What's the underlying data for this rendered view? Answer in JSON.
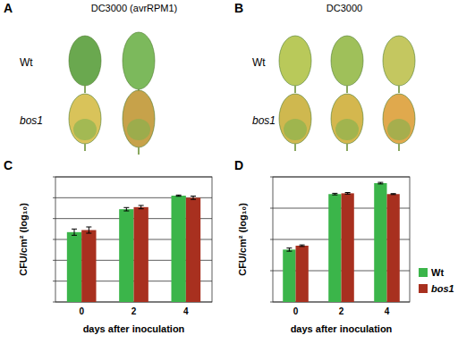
{
  "panel_labels": [
    "A",
    "B",
    "C",
    "D"
  ],
  "photos": [
    {
      "title": "DC3000 (avrRPM1)",
      "rows": [
        "Wt",
        "bos1"
      ]
    },
    {
      "title": "DC3000",
      "rows": [
        "Wt",
        "bos1"
      ]
    }
  ],
  "chart_data": [
    {
      "type": "bar",
      "categories": [
        "0",
        "2",
        "4"
      ],
      "x_label": "days after inoculation",
      "y_label": "CFU/cm² (log₁₀)",
      "series": [
        {
          "name": "Wt",
          "color": "#3bb54a",
          "values": [
            3.35,
            4.45,
            5.1
          ],
          "errors": [
            0.15,
            0.08,
            0.03
          ]
        },
        {
          "name": "bos1",
          "color": "#a8301f",
          "values": [
            3.45,
            4.55,
            5.0
          ],
          "errors": [
            0.15,
            0.08,
            0.08
          ]
        }
      ],
      "ylim": [
        0,
        6
      ],
      "yticks": [
        0,
        1,
        2,
        3,
        4,
        5,
        6
      ],
      "grid": true,
      "tick_labels": "x"
    },
    {
      "type": "bar",
      "categories": [
        "0",
        "2",
        "4"
      ],
      "x_label": "days after inoculation",
      "y_label": "CFU/cm² (log₁₀)",
      "series": [
        {
          "name": "Wt",
          "color": "#3bb54a",
          "values": [
            3.35,
            6.9,
            7.6
          ],
          "errors": [
            0.1,
            0.05,
            0.05
          ]
        },
        {
          "name": "bos1",
          "color": "#a8301f",
          "values": [
            3.6,
            6.95,
            6.9
          ],
          "errors": [
            0.05,
            0.05,
            0.03
          ]
        }
      ],
      "ylim": [
        0,
        8
      ],
      "yticks": [
        0,
        2,
        4,
        6,
        8
      ],
      "grid": true,
      "tick_labels": "x",
      "legend": "right"
    }
  ]
}
